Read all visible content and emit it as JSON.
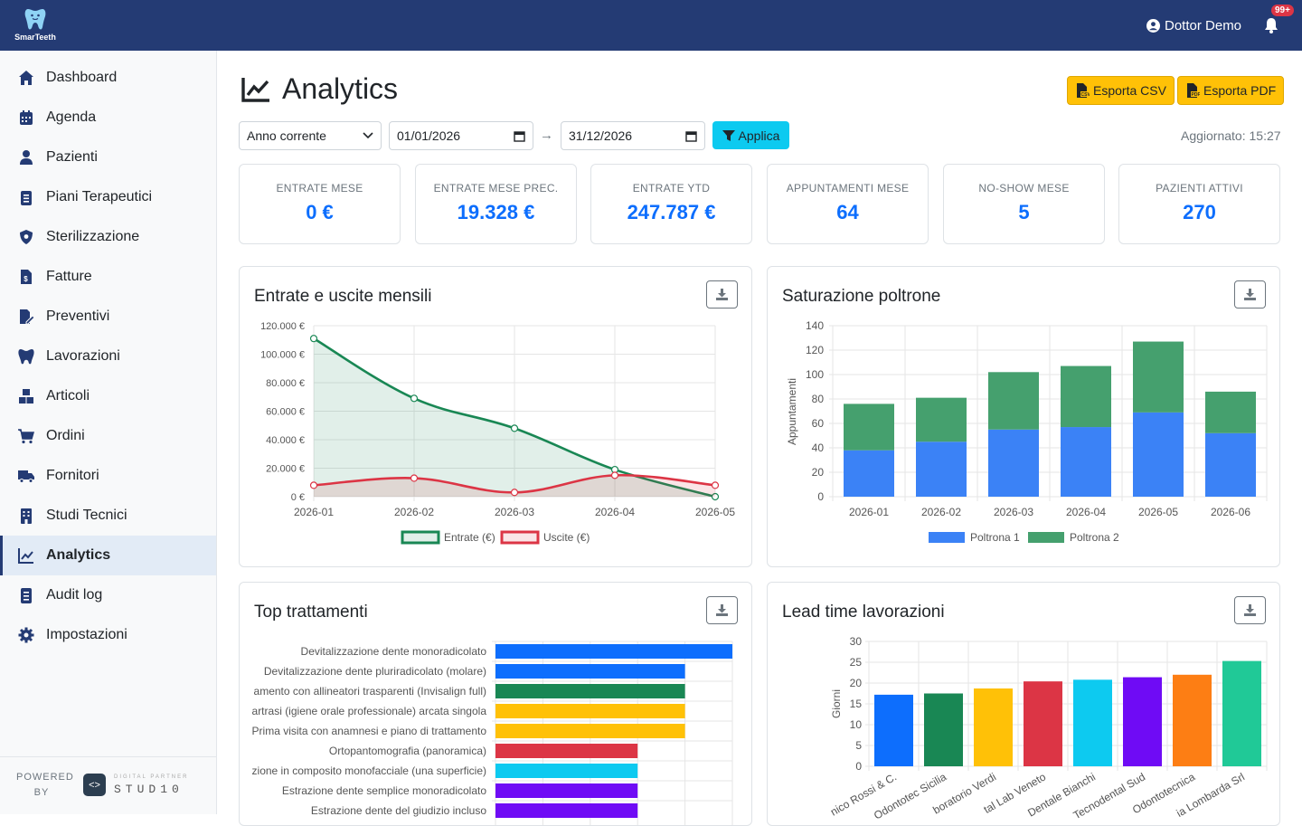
{
  "app": {
    "name": "SmarTeeth",
    "user": "Dottor Demo",
    "notifications": "99+"
  },
  "sidebar": {
    "items": [
      {
        "label": "Dashboard",
        "icon": "home-icon"
      },
      {
        "label": "Agenda",
        "icon": "calendar-icon"
      },
      {
        "label": "Pazienti",
        "icon": "user-icon"
      },
      {
        "label": "Piani Terapeutici",
        "icon": "clipboard-icon"
      },
      {
        "label": "Sterilizzazione",
        "icon": "shield-icon"
      },
      {
        "label": "Fatture",
        "icon": "invoice-icon"
      },
      {
        "label": "Preventivi",
        "icon": "file-edit-icon"
      },
      {
        "label": "Lavorazioni",
        "icon": "tooth-icon"
      },
      {
        "label": "Articoli",
        "icon": "boxes-icon"
      },
      {
        "label": "Ordini",
        "icon": "cart-icon"
      },
      {
        "label": "Fornitori",
        "icon": "truck-icon"
      },
      {
        "label": "Studi Tecnici",
        "icon": "building-icon"
      },
      {
        "label": "Analytics",
        "icon": "chart-line-icon"
      },
      {
        "label": "Audit log",
        "icon": "list-icon"
      },
      {
        "label": "Impostazioni",
        "icon": "gear-icon"
      }
    ],
    "active": "Analytics",
    "powered_by": "POWERED BY",
    "partner_tag": "DIGITAL PARTNER",
    "partner_name": "STUD10"
  },
  "page": {
    "title": "Analytics",
    "export_csv": "Esporta CSV",
    "export_pdf": "Esporta PDF",
    "period_select": "Anno corrente",
    "date_from": "01/01/2026",
    "date_to": "31/12/2026",
    "date_separator": "→",
    "apply": "Applica",
    "updated": "Aggiornato: 15:27"
  },
  "kpis": [
    {
      "label": "ENTRATE MESE",
      "value": "0 €"
    },
    {
      "label": "ENTRATE MESE PREC.",
      "value": "19.328 €"
    },
    {
      "label": "ENTRATE YTD",
      "value": "247.787 €"
    },
    {
      "label": "APPUNTAMENTI MESE",
      "value": "64"
    },
    {
      "label": "NO-SHOW MESE",
      "value": "5"
    },
    {
      "label": "PAZIENTI ATTIVI",
      "value": "270"
    }
  ],
  "cards": {
    "c1": "Entrate e uscite mensili",
    "c2": "Saturazione poltrone",
    "c3": "Top trattamenti",
    "c4": "Lead time lavorazioni"
  },
  "chart_data": [
    {
      "type": "line",
      "title": "Entrate e uscite mensili",
      "x": [
        "2026-01",
        "2026-02",
        "2026-03",
        "2026-04",
        "2026-05"
      ],
      "yticks": [
        "0 €",
        "20.000 €",
        "40.000 €",
        "60.000 €",
        "80.000 €",
        "100.000 €",
        "120.000 €"
      ],
      "ylim": [
        0,
        120000
      ],
      "series": [
        {
          "name": "Entrate (€)",
          "values": [
            111000,
            69000,
            48000,
            19000,
            0
          ],
          "color": "#198754"
        },
        {
          "name": "Uscite (€)",
          "values": [
            8000,
            13000,
            3000,
            15000,
            8000
          ],
          "color": "#dc3545"
        }
      ],
      "legend": "bottom",
      "grid": true
    },
    {
      "type": "bar",
      "stacked": true,
      "title": "Saturazione poltrone",
      "categories": [
        "2026-01",
        "2026-02",
        "2026-03",
        "2026-04",
        "2026-05",
        "2026-06"
      ],
      "ylabel": "Appuntamenti",
      "ylim": [
        0,
        140
      ],
      "yticks": [
        0,
        20,
        40,
        60,
        80,
        100,
        120,
        140
      ],
      "series": [
        {
          "name": "Poltrona 1",
          "values": [
            38,
            45,
            55,
            57,
            69,
            52
          ],
          "color": "#3b82f6"
        },
        {
          "name": "Poltrona 2",
          "values": [
            38,
            36,
            47,
            50,
            58,
            34
          ],
          "color": "#45a06e"
        }
      ],
      "legend": "bottom",
      "grid": true
    },
    {
      "type": "bar",
      "orientation": "horizontal",
      "title": "Top trattamenti",
      "categories": [
        "Devitalizzazione dente monoradicolato",
        "Devitalizzazione dente pluriradicolato (molare)",
        "amento con allineatori trasparenti (Invisalign full)",
        "artrasi (igiene orale professionale) arcata singola",
        "Prima visita con anamnesi e piano di trattamento",
        "Ortopantomografia (panoramica)",
        "zione in composito monofacciale (una superficie)",
        "Estrazione dente semplice monoradicolato",
        "Estrazione dente del giudizio incluso"
      ],
      "values": [
        5,
        4,
        4,
        4,
        4,
        3,
        3,
        3,
        3
      ],
      "colors": [
        "#0d6efd",
        "#0d6efd",
        "#198754",
        "#ffc107",
        "#ffc107",
        "#dc3545",
        "#0dcaf0",
        "#6f0bf5",
        "#6f0bf5"
      ],
      "grid": true
    },
    {
      "type": "bar",
      "title": "Lead time lavorazioni",
      "categories": [
        "nico Rossi & C.",
        "Odontotec Sicilia",
        "boratorio Verdi",
        "tal Lab Veneto",
        "Dentale Bianchi",
        "Tecnodental Sud",
        "Odontotecnica",
        "ia Lombarda Srl"
      ],
      "values": [
        17.2,
        17.5,
        18.7,
        20.4,
        20.8,
        21.4,
        22.0,
        25.3
      ],
      "colors": [
        "#0d6efd",
        "#198754",
        "#ffc107",
        "#dc3545",
        "#0dcaf0",
        "#6f0bf5",
        "#fd7e14",
        "#20c997"
      ],
      "ylabel": "Giorni",
      "ylim": [
        0,
        30
      ],
      "yticks": [
        0,
        5,
        10,
        15,
        20,
        25,
        30
      ],
      "grid": true
    }
  ]
}
